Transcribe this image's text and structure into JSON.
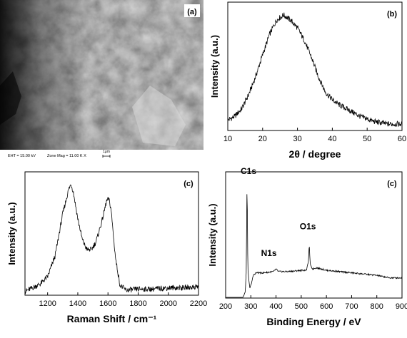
{
  "sem_panel": {
    "panel_label": "(a)",
    "footer": {
      "eht": "EHT = 15.00 kV",
      "zone_mag": "Zone Mag = 11.00 K X",
      "scale_label": "1μm"
    }
  },
  "chart_data": [
    {
      "id": "xrd",
      "type": "line",
      "panel_label": "(b)",
      "xlabel": "2θ / degree",
      "ylabel": "Intensity (a.u.)",
      "xlim": [
        10,
        60
      ],
      "ylim": [
        0,
        1
      ],
      "xticks": [
        10,
        20,
        30,
        40,
        50,
        60
      ],
      "yticks_shown": false,
      "series": [
        {
          "points": [
            [
              10,
              0.08
            ],
            [
              12,
              0.11
            ],
            [
              14,
              0.17
            ],
            [
              16,
              0.28
            ],
            [
              18,
              0.42
            ],
            [
              20,
              0.59
            ],
            [
              22,
              0.75
            ],
            [
              24,
              0.86
            ],
            [
              25,
              0.88
            ],
            [
              26,
              0.9
            ],
            [
              28,
              0.86
            ],
            [
              30,
              0.8
            ],
            [
              32,
              0.7
            ],
            [
              34,
              0.57
            ],
            [
              36,
              0.42
            ],
            [
              38,
              0.3
            ],
            [
              40,
              0.24
            ],
            [
              42,
              0.2
            ],
            [
              44,
              0.17
            ],
            [
              46,
              0.14
            ],
            [
              48,
              0.11
            ],
            [
              50,
              0.09
            ],
            [
              52,
              0.07
            ],
            [
              54,
              0.06
            ],
            [
              56,
              0.05
            ],
            [
              58,
              0.05
            ],
            [
              60,
              0.05
            ]
          ]
        }
      ]
    },
    {
      "id": "raman",
      "type": "line",
      "panel_label": "(c)",
      "xlabel": "Raman Shift / cm⁻¹",
      "ylabel": "Intensity (a.u.)",
      "xlim": [
        1050,
        2200
      ],
      "ylim": [
        0,
        1
      ],
      "xticks": [
        1200,
        1400,
        1600,
        1800,
        2000,
        2200
      ],
      "yticks_shown": false,
      "series": [
        {
          "points": [
            [
              1050,
              0.03
            ],
            [
              1100,
              0.06
            ],
            [
              1150,
              0.09
            ],
            [
              1200,
              0.15
            ],
            [
              1250,
              0.32
            ],
            [
              1300,
              0.66
            ],
            [
              1340,
              0.86
            ],
            [
              1355,
              0.9
            ],
            [
              1370,
              0.84
            ],
            [
              1400,
              0.62
            ],
            [
              1430,
              0.45
            ],
            [
              1460,
              0.37
            ],
            [
              1490,
              0.37
            ],
            [
              1520,
              0.43
            ],
            [
              1560,
              0.6
            ],
            [
              1590,
              0.76
            ],
            [
              1605,
              0.78
            ],
            [
              1620,
              0.7
            ],
            [
              1650,
              0.3
            ],
            [
              1680,
              0.08
            ],
            [
              1720,
              0.04
            ],
            [
              1800,
              0.05
            ],
            [
              1900,
              0.05
            ],
            [
              2000,
              0.06
            ],
            [
              2100,
              0.06
            ],
            [
              2200,
              0.07
            ]
          ]
        }
      ]
    },
    {
      "id": "xps",
      "type": "line",
      "panel_label": "(c)",
      "xlabel": "Binding Energy / eV",
      "ylabel": "Intensity (a.u.)",
      "xlim": [
        200,
        900
      ],
      "ylim": [
        0,
        1
      ],
      "xticks": [
        200,
        300,
        400,
        500,
        600,
        700,
        800,
        900
      ],
      "yticks_shown": false,
      "annotations": [
        {
          "text": "C1s",
          "x": 285,
          "y": 0.96
        },
        {
          "text": "N1s",
          "x": 400,
          "y": 0.3
        },
        {
          "text": "O1s",
          "x": 532,
          "y": 0.5
        }
      ],
      "series": [
        {
          "points": [
            [
              200,
              0.0
            ],
            [
              260,
              0.0
            ],
            [
              270,
              0.01
            ],
            [
              278,
              0.05
            ],
            [
              282,
              0.22
            ],
            [
              284,
              0.7
            ],
            [
              285,
              0.91
            ],
            [
              286,
              0.7
            ],
            [
              288,
              0.24
            ],
            [
              292,
              0.14
            ],
            [
              296,
              0.08
            ],
            [
              300,
              0.1
            ],
            [
              310,
              0.18
            ],
            [
              320,
              0.2
            ],
            [
              350,
              0.2
            ],
            [
              390,
              0.21
            ],
            [
              400,
              0.23
            ],
            [
              410,
              0.21
            ],
            [
              450,
              0.21
            ],
            [
              500,
              0.22
            ],
            [
              520,
              0.22
            ],
            [
              528,
              0.28
            ],
            [
              532,
              0.42
            ],
            [
              536,
              0.26
            ],
            [
              545,
              0.23
            ],
            [
              560,
              0.24
            ],
            [
              600,
              0.22
            ],
            [
              650,
              0.21
            ],
            [
              700,
              0.2
            ],
            [
              750,
              0.19
            ],
            [
              800,
              0.18
            ],
            [
              850,
              0.16
            ],
            [
              900,
              0.16
            ]
          ]
        }
      ]
    }
  ]
}
